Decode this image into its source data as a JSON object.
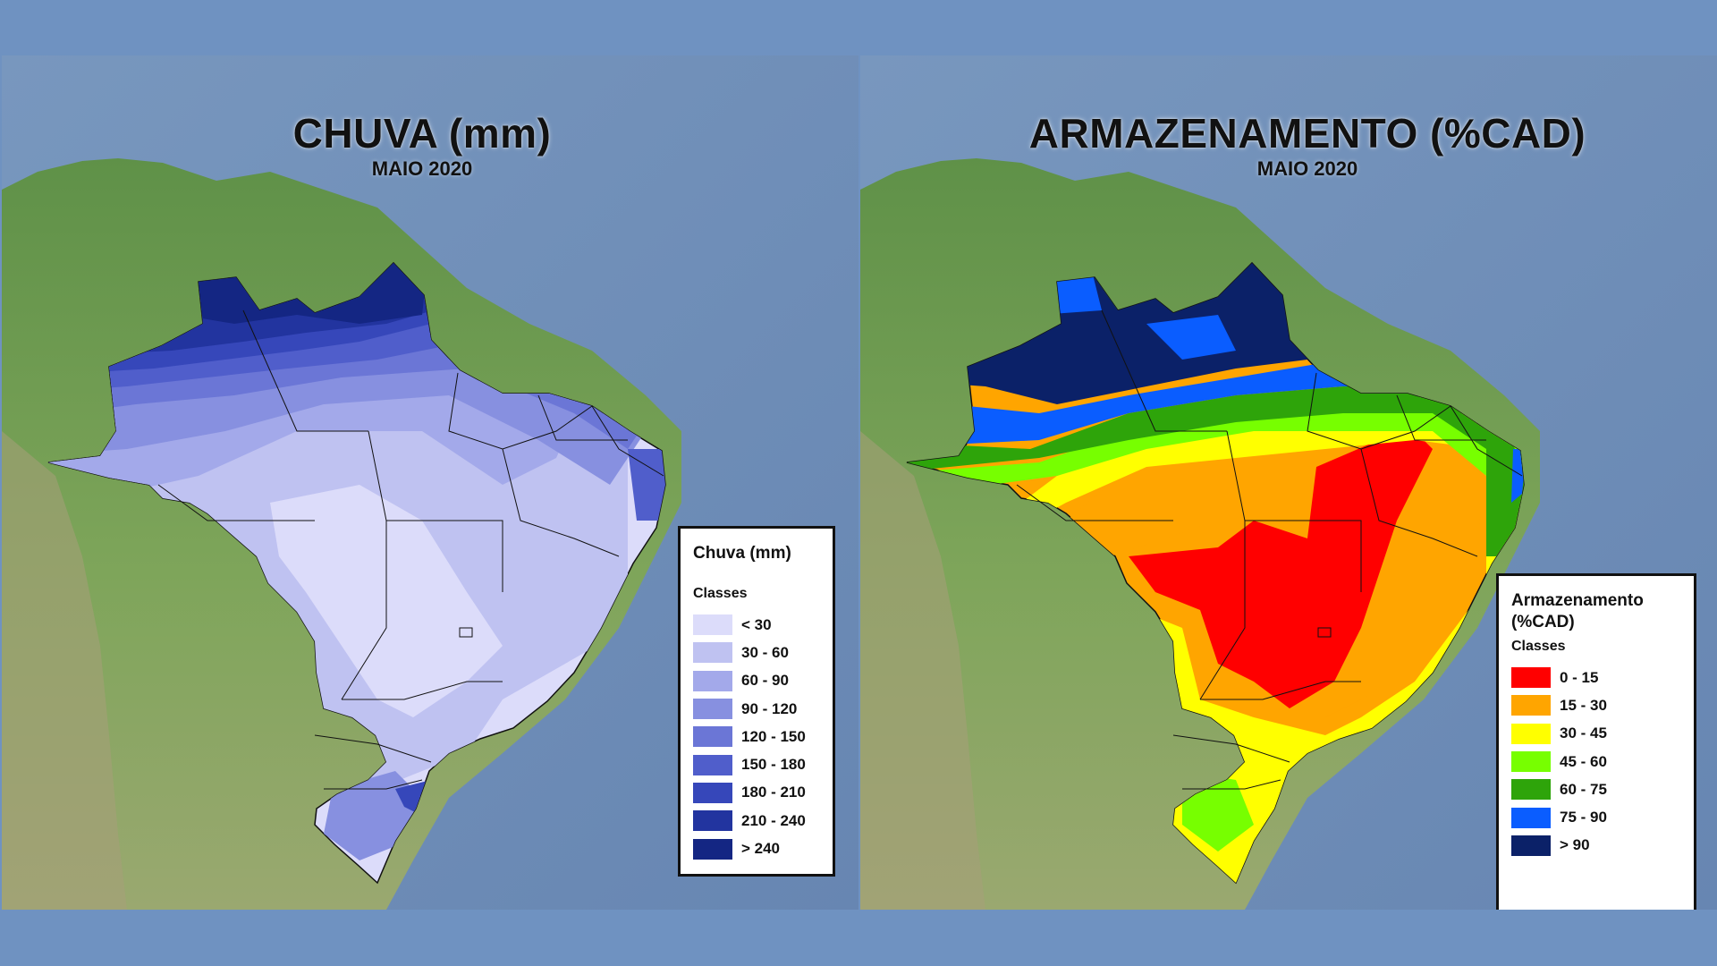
{
  "left_map": {
    "title": "CHUVA (mm)",
    "subtitle": "MAIO 2020",
    "legend": {
      "title": "Chuva (mm)",
      "subtitle": "Classes",
      "items": [
        {
          "label": "< 30",
          "color": "#dcdcfa"
        },
        {
          "label": "30 - 60",
          "color": "#bfc2f1"
        },
        {
          "label": "60 - 90",
          "color": "#a3a9ea"
        },
        {
          "label": "90 - 120",
          "color": "#8790e0"
        },
        {
          "label": "120 - 150",
          "color": "#6b76d6"
        },
        {
          "label": "150 - 180",
          "color": "#505ecb"
        },
        {
          "label": "180 - 210",
          "color": "#3647ba"
        },
        {
          "label": "210 - 240",
          "color": "#22349f"
        },
        {
          "label": "> 240",
          "color": "#142683"
        }
      ]
    }
  },
  "right_map": {
    "title": "ARMAZENAMENTO (%CAD)",
    "subtitle": "MAIO 2020",
    "legend": {
      "title_line1": "Armazenamento",
      "title_line2": "(%CAD)",
      "subtitle": "Classes",
      "items": [
        {
          "label": "0 - 15",
          "color": "#ff0000"
        },
        {
          "label": "15 - 30",
          "color": "#ffa500"
        },
        {
          "label": "30 - 45",
          "color": "#ffff00"
        },
        {
          "label": "45 - 60",
          "color": "#77ff00"
        },
        {
          "label": "60 - 75",
          "color": "#2ea40a"
        },
        {
          "label": "75 - 90",
          "color": "#0a5dff"
        },
        {
          "label": "> 90",
          "color": "#0b2168"
        }
      ]
    }
  },
  "colors": {
    "page_background": "#6f92c1",
    "ocean": "#6e8fb8",
    "land": "#6f9c4e"
  }
}
